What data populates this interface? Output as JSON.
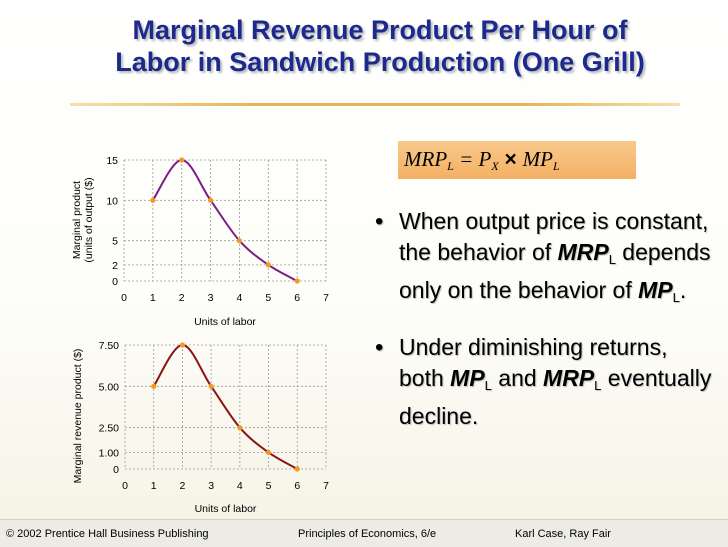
{
  "title": {
    "line1": "Marginal Revenue Product Per Hour of",
    "line2": "Labor in Sandwich Production (One Grill)"
  },
  "formula": {
    "mrp": "MRP",
    "l": "L",
    "eq": " = P",
    "x": "X",
    "times": " × ",
    "mp": " MP",
    "l2": "L"
  },
  "bullets": [
    {
      "part1": "When output price is constant, the behavior of ",
      "mrp": "MRP",
      "sub": "L",
      "part2": " depends only on the behavior of ",
      "mp": "MP",
      "sub2": "L",
      "part3": "."
    },
    {
      "part1": "Under diminishing returns, both ",
      "mp": "MP",
      "sub": "L",
      "part2": " and ",
      "mrp": "MRP",
      "sub2": "L",
      "part3": " eventually decline."
    }
  ],
  "footer": {
    "copyright": "© 2002 Prentice Hall Business Publishing",
    "book": "Principles of Economics, 6/e",
    "authors": "Karl Case, Ray Fair"
  },
  "colors": {
    "title": "#1b2a8c",
    "mp_line": "#7a1e86",
    "mrp_line": "#8b1414",
    "points": "#f09a1e",
    "rule": "#eab454",
    "formula_bg": "#f6b86e"
  },
  "chart_data": [
    {
      "type": "line",
      "title": "",
      "xlabel": "Units of labor",
      "ylabel": "Marginal product\n(units of output ($)",
      "x": [
        1,
        2,
        3,
        4,
        5,
        6
      ],
      "y": [
        10,
        15,
        10,
        5,
        2,
        0
      ],
      "xlim": [
        0,
        7
      ],
      "ylim": [
        0,
        15
      ],
      "xticks": [
        "0",
        "1",
        "2",
        "3",
        "4",
        "5",
        "6",
        "7"
      ],
      "yticks": [
        {
          "v": 0,
          "t": "0"
        },
        {
          "v": 2,
          "t": "2"
        },
        {
          "v": 5,
          "t": "5"
        },
        {
          "v": 10,
          "t": "10"
        },
        {
          "v": 15,
          "t": "15"
        }
      ],
      "grid": true
    },
    {
      "type": "line",
      "title": "",
      "xlabel": "Units of labor",
      "ylabel": "Marginal revenue product ($)",
      "x": [
        1,
        2,
        3,
        4,
        5,
        6
      ],
      "y": [
        5.0,
        7.5,
        5.0,
        2.5,
        1.0,
        0
      ],
      "xlim": [
        0,
        7
      ],
      "ylim": [
        0,
        7.5
      ],
      "xticks": [
        "0",
        "1",
        "2",
        "3",
        "4",
        "5",
        "6",
        "7"
      ],
      "yticks": [
        {
          "v": 0,
          "t": "0"
        },
        {
          "v": 1,
          "t": "1.00"
        },
        {
          "v": 2.5,
          "t": "2.50"
        },
        {
          "v": 5,
          "t": "5.00"
        },
        {
          "v": 7.5,
          "t": "7.50"
        }
      ],
      "grid": true
    }
  ]
}
